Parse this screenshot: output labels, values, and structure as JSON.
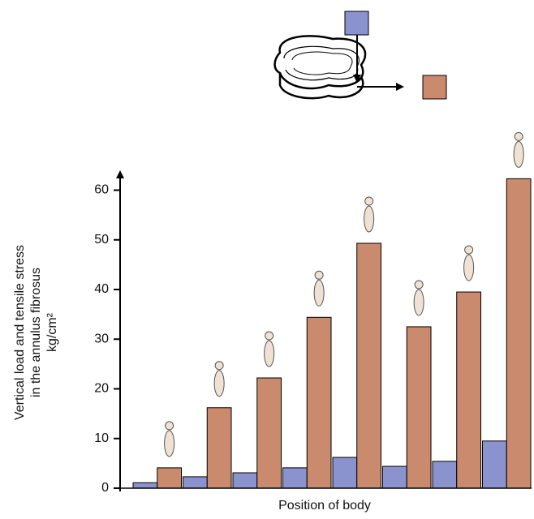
{
  "chart_data": {
    "type": "bar",
    "x_label": "Position of body",
    "y_label": [
      "Vertical load and tensile stress",
      "in the annulus fibrosus",
      "kg/cm²"
    ],
    "categories": [
      null,
      null,
      null,
      null,
      null,
      null,
      null,
      null
    ],
    "series": [
      {
        "color": "#8b93cf",
        "values": [
          1.1,
          2.3,
          3.1,
          4.1,
          6.2,
          4.4,
          5.4,
          9.5
        ]
      },
      {
        "color": "#c98a6d",
        "values": [
          4.1,
          16.2,
          22.2,
          34.4,
          49.3,
          32.5,
          39.5,
          62.3
        ]
      }
    ],
    "ylim": [
      0,
      64
    ],
    "yticks": [
      0,
      10,
      20,
      30,
      40,
      50,
      60
    ],
    "grid": false
  }
}
